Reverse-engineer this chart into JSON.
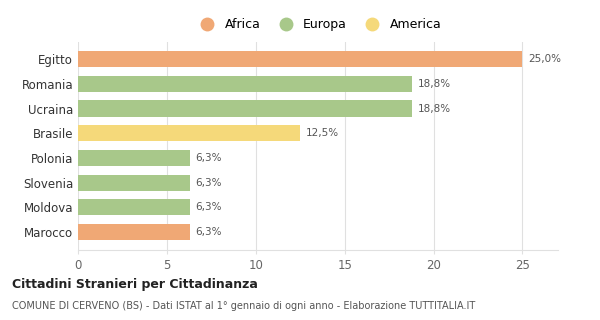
{
  "categories": [
    "Egitto",
    "Romania",
    "Ucraina",
    "Brasile",
    "Polonia",
    "Slovenia",
    "Moldova",
    "Marocco"
  ],
  "values": [
    25.0,
    18.8,
    18.8,
    12.5,
    6.3,
    6.3,
    6.3,
    6.3
  ],
  "labels": [
    "25,0%",
    "18,8%",
    "18,8%",
    "12,5%",
    "6,3%",
    "6,3%",
    "6,3%",
    "6,3%"
  ],
  "bar_colors": [
    "#f0a875",
    "#a8c88a",
    "#a8c88a",
    "#f5d97a",
    "#a8c88a",
    "#a8c88a",
    "#a8c88a",
    "#f0a875"
  ],
  "legend": [
    {
      "label": "Africa",
      "color": "#f0a875"
    },
    {
      "label": "Europa",
      "color": "#a8c88a"
    },
    {
      "label": "America",
      "color": "#f5d97a"
    }
  ],
  "xlim": [
    0,
    27
  ],
  "xticks": [
    0,
    5,
    10,
    15,
    20,
    25
  ],
  "title_bold": "Cittadini Stranieri per Cittadinanza",
  "subtitle": "COMUNE DI CERVENO (BS) - Dati ISTAT al 1° gennaio di ogni anno - Elaborazione TUTTITALIA.IT",
  "background_color": "#ffffff",
  "grid_color": "#e0e0e0"
}
